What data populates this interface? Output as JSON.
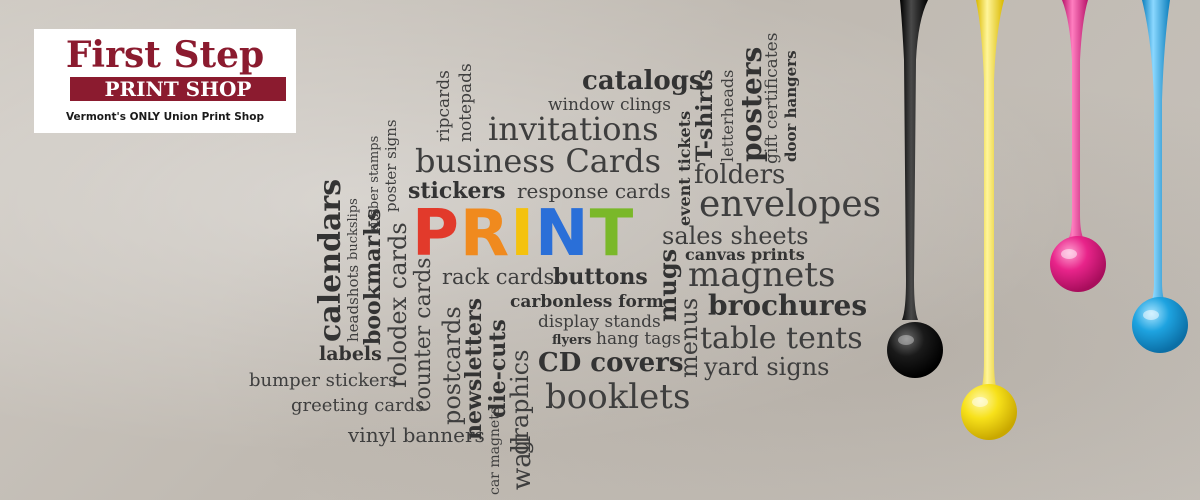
{
  "logo": {
    "title": "First Step",
    "band": "PRINT SHOP",
    "tagline": "Vermont's ONLY Union Print Shop",
    "brand_color": "#8b1b2f"
  },
  "print_word": {
    "letters": [
      "P",
      "R",
      "I",
      "N",
      "T"
    ],
    "colors": [
      "#e23a2b",
      "#f08a1e",
      "#f4c20d",
      "#2a6fd8",
      "#7ab829"
    ]
  },
  "words": {
    "catalogs": "catalogs",
    "window_clings": "window clings",
    "invitations": "invitations",
    "business_cards": "business Cards",
    "stickers": "stickers",
    "response_cards": "response cards",
    "folders": "folders",
    "envelopes": "envelopes",
    "sales_sheets": "sales sheets",
    "canvas_prints": "canvas prints",
    "magnets": "magnets",
    "brochures": "brochures",
    "table_tents": "table tents",
    "yard_signs": "yard signs",
    "rack_cards": "rack cards",
    "buttons": "buttons",
    "carbonless_form": "carbonless form",
    "display_stands": "display stands",
    "flyers": "flyers",
    "hang_tags": "hang tags",
    "cd_covers": "CD covers",
    "booklets": "booklets",
    "labels": "labels",
    "bumper_stickers": "bumper stickers",
    "greeting_cards": "greeting cards",
    "vinyl_banners": "vinyl banners",
    "calendars": "calendars",
    "headshots": "headshots",
    "buckslips": "buckslips",
    "bookmarks": "bookmarks",
    "rubber_stamps": "rubber stamps",
    "rolodex_cards": "rolodex cards",
    "poster_signs": "poster signs",
    "counter_cards": "counter cards",
    "postcards": "postcards",
    "newsletters": "newsletters",
    "die_cuts": "die-cuts",
    "graphics": "graphics",
    "wall": "wall",
    "car_magnets": "car magnets",
    "ripcards": "ripcards",
    "notepads": "notepads",
    "mugs": "mugs",
    "menus": "menus",
    "event_tickets": "event tickets",
    "t_shirts": "T-shirts",
    "letterheads": "letterheads",
    "posters": "posters",
    "gift_certificates": "gift certificates",
    "door_hangers": "door hangers"
  },
  "ink_colors": {
    "black": "#1a1a1a",
    "yellow": "#f7e11a",
    "magenta": "#e8248a",
    "cyan": "#1ea3e0"
  }
}
